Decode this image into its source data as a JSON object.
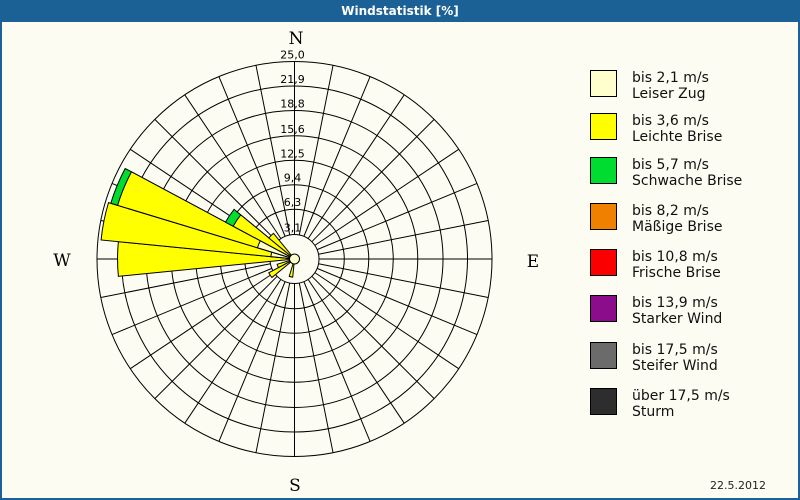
{
  "window": {
    "title": "Windstatistik [%]"
  },
  "date_label": "22.5.2012",
  "chart_data": {
    "type": "windrose",
    "title": "Windstatistik [%]",
    "unit": "percent",
    "sector_count": 32,
    "sector_width_deg": 11.25,
    "r_axis": {
      "min": 0,
      "max": 25.0,
      "rings": [
        3.1,
        6.3,
        9.4,
        12.5,
        15.6,
        18.8,
        21.9,
        25.0
      ],
      "tick_labels": [
        "3,1",
        "6,3",
        "9,4",
        "12,5",
        "15,6",
        "18,8",
        "21,9",
        "25,0"
      ]
    },
    "compass": {
      "north": "N",
      "east": "E",
      "south": "S",
      "west": "W"
    },
    "grid_color": "#000000",
    "classes": [
      {
        "limit": "bis 2,1 m/s",
        "name": "Leiser Zug",
        "color": "#FFFFCE"
      },
      {
        "limit": "bis 3,6 m/s",
        "name": "Leichte Brise",
        "color": "#FFFF00"
      },
      {
        "limit": "bis 5,7 m/s",
        "name": "Schwache Brise",
        "color": "#00DC30"
      },
      {
        "limit": "bis 8,2 m/s",
        "name": "Mäßige Brise",
        "color": "#F08000"
      },
      {
        "limit": "bis 10,8 m/s",
        "name": "Frische Brise",
        "color": "#FA0000"
      },
      {
        "limit": "bis 13,9 m/s",
        "name": "Starker Wind",
        "color": "#8B0D8B"
      },
      {
        "limit": "bis 17,5 m/s",
        "name": "Steifer Wind",
        "color": "#6B6B6B"
      },
      {
        "limit": "über 17,5 m/s",
        "name": "Sturm",
        "color": "#2D2D2D",
        "pattern": "dots"
      }
    ],
    "bars": [
      {
        "direction": "SbW",
        "dir_deg": 191.25,
        "segments": [
          {
            "class_index": 1,
            "to": 2.3
          }
        ]
      },
      {
        "direction": "SWbW",
        "dir_deg": 236.25,
        "segments": [
          {
            "class_index": 1,
            "to": 3.7
          }
        ]
      },
      {
        "direction": "WSW",
        "dir_deg": 247.5,
        "segments": [
          {
            "class_index": 1,
            "to": 2.3
          }
        ]
      },
      {
        "direction": "W",
        "dir_deg": 270.0,
        "segments": [
          {
            "class_index": 1,
            "to": 22.4
          }
        ]
      },
      {
        "direction": "WbN",
        "dir_deg": 281.25,
        "segments": [
          {
            "class_index": 0,
            "to": 3.0
          },
          {
            "class_index": 1,
            "to": 24.6
          }
        ]
      },
      {
        "direction": "WNW",
        "dir_deg": 292.5,
        "segments": [
          {
            "class_index": 0,
            "to": 4.9
          },
          {
            "class_index": 1,
            "to": 23.4
          },
          {
            "class_index": 2,
            "to": 24.3
          }
        ]
      },
      {
        "direction": "NWbW",
        "dir_deg": 303.75,
        "segments": [
          {
            "class_index": 1,
            "to": 8.8
          },
          {
            "class_index": 2,
            "to": 9.9
          }
        ]
      },
      {
        "direction": "NW",
        "dir_deg": 315.0,
        "segments": [
          {
            "class_index": 1,
            "to": 4.2
          }
        ]
      }
    ],
    "calm_center": {
      "radius_px": 5,
      "color": "#FFFFCE"
    }
  },
  "legend_geometry": {
    "item_tops": [
      48,
      91,
      135,
      181,
      227,
      273,
      320,
      366
    ]
  }
}
